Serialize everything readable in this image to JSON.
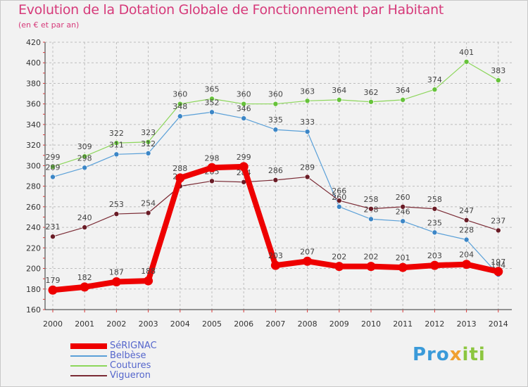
{
  "title": "Evolution de la Dotation Globale de Fonctionnement par Habitant",
  "subtitle": "(en € et par an)",
  "brand": {
    "part1": "Pro",
    "part2": "x",
    "part3": "iti"
  },
  "colors": {
    "title": "#d63a7a",
    "legend_text": "#5566cc",
    "grid": "#bdbdbd"
  },
  "chart_data": {
    "type": "line",
    "title": "Evolution de la Dotation Globale de Fonctionnement par Habitant",
    "subtitle": "(en € et par an)",
    "xlabel": "",
    "ylabel": "",
    "x": [
      "2000",
      "2001",
      "2002",
      "2003",
      "2004",
      "2005",
      "2006",
      "2007",
      "2008",
      "2009",
      "2010",
      "2011",
      "2012",
      "2013",
      "2014"
    ],
    "ylim": [
      160,
      420
    ],
    "yticks": [
      160,
      180,
      200,
      220,
      240,
      260,
      280,
      300,
      320,
      340,
      360,
      380,
      400,
      420
    ],
    "grid": "horizontal dashed",
    "legend_position": "bottom-left",
    "series": [
      {
        "name": "Coutures",
        "color": "#8cd65a",
        "marker": "#66c23a",
        "width": 1.2,
        "radius": 3.5,
        "values": [
          299,
          309,
          322,
          323,
          360,
          365,
          360,
          360,
          363,
          364,
          362,
          364,
          374,
          401,
          383
        ]
      },
      {
        "name": "Belbèse",
        "color": "#5aa0d8",
        "marker": "#3c86c6",
        "width": 1.2,
        "radius": 3.5,
        "values": [
          289,
          298,
          311,
          312,
          348,
          352,
          346,
          335,
          333,
          260,
          248,
          246,
          235,
          228,
          194
        ]
      },
      {
        "name": "Vigueron",
        "color": "#7a2a34",
        "marker": "#6a1c26",
        "width": 1.2,
        "radius": 3.5,
        "values": [
          231,
          240,
          253,
          254,
          280,
          285,
          284,
          286,
          289,
          266,
          258,
          260,
          258,
          247,
          237
        ]
      },
      {
        "name": "SéRIGNAC",
        "color": "#ee0000",
        "marker": "#ee0000",
        "width": 8,
        "radius": 6.5,
        "values": [
          179,
          182,
          187,
          188,
          288,
          298,
          299,
          203,
          207,
          202,
          202,
          201,
          203,
          204,
          197
        ]
      }
    ],
    "legend_order": [
      "SéRIGNAC",
      "Belbèse",
      "Coutures",
      "Vigueron"
    ]
  }
}
